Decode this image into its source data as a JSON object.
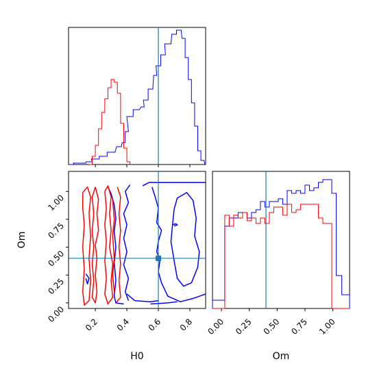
{
  "chart_data": [
    {
      "type": "histogram",
      "panel": "H0 marginal",
      "x_range": [
        0.03,
        0.9
      ],
      "truth": 0.6,
      "colors": {
        "blue": "#0000ff",
        "red": "#ff0000",
        "truth": "#1f77b4"
      },
      "series": [
        {
          "color": "blue",
          "x": [
            0.05,
            0.08,
            0.12,
            0.16,
            0.2,
            0.25,
            0.3,
            0.35,
            0.38,
            0.4,
            0.42,
            0.46,
            0.5,
            0.52,
            0.55,
            0.58,
            0.6,
            0.63,
            0.66,
            0.7,
            0.73,
            0.76,
            0.78,
            0.8,
            0.82,
            0.84,
            0.86,
            0.88
          ],
          "y": [
            0,
            0.01,
            0.01,
            0.02,
            0.04,
            0.06,
            0.09,
            0.13,
            0.16,
            0.24,
            0.35,
            0.4,
            0.42,
            0.47,
            0.55,
            0.65,
            0.72,
            0.8,
            0.88,
            0.95,
            0.98,
            0.92,
            0.78,
            0.62,
            0.45,
            0.28,
            0.1,
            0.03
          ]
        },
        {
          "color": "red",
          "x": [
            0.17,
            0.19,
            0.21,
            0.23,
            0.25,
            0.27,
            0.29,
            0.31,
            0.33,
            0.35,
            0.37,
            0.39,
            0.41
          ],
          "y": [
            0,
            0.06,
            0.14,
            0.26,
            0.38,
            0.48,
            0.56,
            0.62,
            0.6,
            0.52,
            0.3,
            0.12,
            0.02
          ]
        }
      ]
    },
    {
      "type": "contour",
      "panel": "H0 vs Om",
      "x_range": [
        0.03,
        0.9
      ],
      "y_range": [
        -0.05,
        1.18
      ],
      "truth": {
        "x": 0.6,
        "y": 0.4
      },
      "xlabel": "H0",
      "ylabel": "Om",
      "xticks": [
        0.2,
        0.4,
        0.6,
        0.8
      ],
      "yticks": [
        "0.00",
        "0.25",
        "0.50",
        "0.75",
        "1.00"
      ],
      "series": [
        {
          "color": "blue",
          "contours": [
            [
              [
                0.5,
                1.05
              ],
              [
                0.54,
                1.08
              ],
              [
                0.62,
                1.08
              ],
              [
                0.72,
                1.08
              ],
              [
                0.8,
                1.08
              ],
              [
                0.9,
                1.08
              ]
            ],
            [
              [
                0.56,
                1.04
              ],
              [
                0.58,
                0.95
              ],
              [
                0.6,
                0.85
              ],
              [
                0.59,
                0.72
              ],
              [
                0.62,
                0.65
              ],
              [
                0.6,
                0.55
              ],
              [
                0.59,
                0.46
              ],
              [
                0.61,
                0.38
              ],
              [
                0.6,
                0.28
              ],
              [
                0.62,
                0.18
              ],
              [
                0.66,
                0.06
              ],
              [
                0.74,
                0.01
              ],
              [
                0.82,
                0.04
              ],
              [
                0.9,
                0.08
              ]
            ],
            [
              [
                0.7,
                0.84
              ],
              [
                0.72,
                0.94
              ],
              [
                0.78,
                0.99
              ],
              [
                0.82,
                0.92
              ],
              [
                0.84,
                0.76
              ],
              [
                0.83,
                0.6
              ],
              [
                0.86,
                0.46
              ],
              [
                0.85,
                0.32
              ],
              [
                0.81,
                0.18
              ],
              [
                0.76,
                0.15
              ],
              [
                0.72,
                0.22
              ],
              [
                0.7,
                0.38
              ],
              [
                0.68,
                0.55
              ],
              [
                0.69,
                0.7
              ],
              [
                0.7,
                0.84
              ]
            ],
            [
              [
                0.28,
                1.04
              ],
              [
                0.3,
                0.98
              ],
              [
                0.32,
                0.88
              ],
              [
                0.33,
                0.76
              ],
              [
                0.32,
                0.64
              ],
              [
                0.33,
                0.5
              ],
              [
                0.32,
                0.36
              ],
              [
                0.33,
                0.2
              ],
              [
                0.32,
                0.06
              ],
              [
                0.33,
                0.0
              ],
              [
                0.38,
                -0.01
              ]
            ],
            [
              [
                0.42,
                1.06
              ],
              [
                0.39,
                1.0
              ],
              [
                0.41,
                0.9
              ],
              [
                0.38,
                0.8
              ],
              [
                0.4,
                0.7
              ],
              [
                0.38,
                0.58
              ],
              [
                0.4,
                0.46
              ],
              [
                0.38,
                0.34
              ],
              [
                0.41,
                0.22
              ],
              [
                0.39,
                0.1
              ],
              [
                0.41,
                0.02
              ]
            ],
            [
              [
                0.4,
                0.08
              ],
              [
                0.45,
                0.02
              ],
              [
                0.55,
                0.01
              ],
              [
                0.6,
                0.02
              ]
            ],
            [
              [
                0.55,
                -0.01
              ],
              [
                0.66,
                0.0
              ],
              [
                0.72,
                0.01
              ]
            ],
            [
              [
                0.14,
                0.26
              ],
              [
                0.16,
                0.22
              ],
              [
                0.15,
                0.17
              ],
              [
                0.14,
                0.22
              ]
            ],
            [
              [
                0.69,
                0.7
              ],
              [
                0.71,
                0.71
              ],
              [
                0.72,
                0.7
              ],
              [
                0.7,
                0.69
              ]
            ]
          ]
        },
        {
          "color": "red",
          "contours": [
            [
              [
                0.12,
                0.99
              ],
              [
                0.15,
                1.04
              ],
              [
                0.17,
                0.95
              ],
              [
                0.16,
                0.8
              ],
              [
                0.17,
                0.6
              ],
              [
                0.16,
                0.4
              ],
              [
                0.17,
                0.2
              ],
              [
                0.16,
                0.02
              ],
              [
                0.13,
                -0.02
              ],
              [
                0.12,
                0.1
              ],
              [
                0.13,
                0.3
              ],
              [
                0.12,
                0.5
              ],
              [
                0.13,
                0.7
              ],
              [
                0.12,
                0.85
              ],
              [
                0.12,
                0.99
              ]
            ],
            [
              [
                0.2,
                1.04
              ],
              [
                0.22,
                0.93
              ],
              [
                0.21,
                0.8
              ],
              [
                0.22,
                0.65
              ],
              [
                0.2,
                0.52
              ],
              [
                0.21,
                0.4
              ],
              [
                0.2,
                0.25
              ],
              [
                0.21,
                0.1
              ],
              [
                0.2,
                0.0
              ],
              [
                0.18,
                0.05
              ],
              [
                0.19,
                0.2
              ],
              [
                0.18,
                0.35
              ],
              [
                0.19,
                0.5
              ],
              [
                0.18,
                0.65
              ],
              [
                0.19,
                0.8
              ],
              [
                0.18,
                0.95
              ],
              [
                0.2,
                1.04
              ]
            ],
            [
              [
                0.26,
                1.0
              ],
              [
                0.28,
                1.05
              ],
              [
                0.3,
                0.95
              ],
              [
                0.29,
                0.8
              ],
              [
                0.3,
                0.65
              ],
              [
                0.29,
                0.5
              ],
              [
                0.31,
                0.35
              ],
              [
                0.3,
                0.2
              ],
              [
                0.31,
                0.05
              ],
              [
                0.28,
                -0.01
              ],
              [
                0.26,
                0.08
              ],
              [
                0.27,
                0.22
              ],
              [
                0.26,
                0.38
              ],
              [
                0.27,
                0.55
              ],
              [
                0.26,
                0.7
              ],
              [
                0.27,
                0.85
              ],
              [
                0.26,
                1.0
              ]
            ],
            [
              [
                0.34,
                1.04
              ],
              [
                0.36,
                0.95
              ],
              [
                0.35,
                0.8
              ],
              [
                0.36,
                0.65
              ],
              [
                0.35,
                0.5
              ],
              [
                0.36,
                0.35
              ],
              [
                0.35,
                0.2
              ],
              [
                0.36,
                0.05
              ],
              [
                0.33,
                0.0
              ]
            ],
            [
              [
                0.31,
                0.92
              ],
              [
                0.32,
                0.75
              ],
              [
                0.31,
                0.6
              ],
              [
                0.32,
                0.4
              ],
              [
                0.31,
                0.25
              ],
              [
                0.32,
                0.1
              ]
            ]
          ]
        }
      ]
    },
    {
      "type": "histogram",
      "panel": "Om marginal",
      "x_range": [
        -0.08,
        1.15
      ],
      "truth": 0.4,
      "xlabel": "Om",
      "xticks": [
        "0.00",
        "0.25",
        "0.50",
        "0.75",
        "1.00"
      ],
      "bin_edges": [
        -0.08,
        -0.01,
        0.03,
        0.07,
        0.11,
        0.15,
        0.19,
        0.23,
        0.27,
        0.31,
        0.35,
        0.39,
        0.43,
        0.47,
        0.51,
        0.55,
        0.59,
        0.63,
        0.67,
        0.71,
        0.75,
        0.79,
        0.83,
        0.87,
        0.91,
        0.95,
        0.99,
        1.03,
        1.08,
        1.15
      ],
      "series": [
        {
          "color": "blue",
          "values": [
            0.06,
            0.06,
            0.6,
            0.66,
            0.66,
            0.7,
            0.7,
            0.66,
            0.7,
            0.72,
            0.78,
            0.74,
            0.78,
            0.78,
            0.8,
            0.76,
            0.86,
            0.84,
            0.86,
            0.84,
            0.9,
            0.86,
            0.88,
            0.92,
            0.94,
            0.94,
            0.84,
            0.24,
            0.1
          ]
        },
        {
          "color": "red",
          "values": [
            0.0,
            0.0,
            0.68,
            0.6,
            0.68,
            0.66,
            0.7,
            0.64,
            0.66,
            0.62,
            0.66,
            0.62,
            0.7,
            0.74,
            0.74,
            0.68,
            0.76,
            0.7,
            0.72,
            0.76,
            0.76,
            0.76,
            0.76,
            0.66,
            0.62,
            0.62,
            0.0,
            0.0,
            0.0
          ]
        }
      ]
    }
  ]
}
